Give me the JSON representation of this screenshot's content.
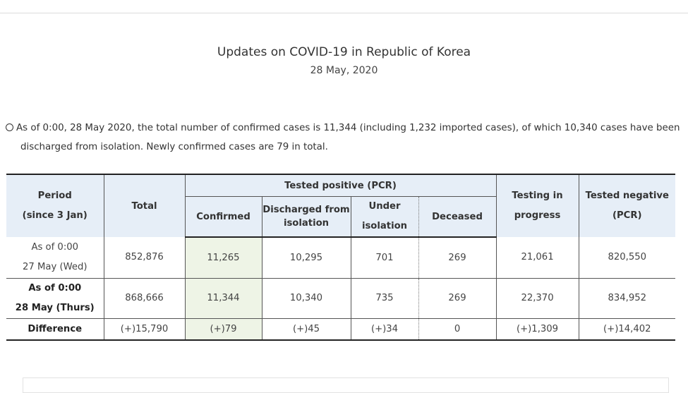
{
  "header": {
    "title": "Updates on COVID-19 in Republic of Korea",
    "date": "28 May, 2020"
  },
  "summary": {
    "line1": "As of 0:00, 28 May 2020, the total number of confirmed cases is 11,344 (including 1,232 imported cases), of which 10,340 cases have been",
    "line2": "discharged from isolation. Newly confirmed cases are 79 in total."
  },
  "table": {
    "headers": {
      "period_line1": "Period",
      "period_line2": "(since 3 Jan)",
      "total": "Total",
      "tested_positive": "Tested positive (PCR)",
      "confirmed": "Confirmed",
      "discharged_line1": "Discharged from",
      "discharged_line2": "isolation",
      "under_line1": "Under",
      "under_line2": "isolation",
      "deceased": "Deceased",
      "testing_line1": "Testing in",
      "testing_line2": "progress",
      "negative_line1": "Tested negative",
      "negative_line2": "(PCR)"
    },
    "rows": [
      {
        "period_line1": "As of 0:00",
        "period_line2": "27 May (Wed)",
        "total": "852,876",
        "confirmed": "11,265",
        "discharged": "10,295",
        "under_isolation": "701",
        "deceased": "269",
        "testing": "21,061",
        "negative": "820,550"
      },
      {
        "period_line1": "As of 0:00",
        "period_line2": "28 May (Thurs)",
        "total": "868,666",
        "confirmed": "11,344",
        "discharged": "10,340",
        "under_isolation": "735",
        "deceased": "269",
        "testing": "22,370",
        "negative": "834,952"
      }
    ],
    "difference": {
      "label": "Difference",
      "total": "(+)15,790",
      "confirmed": "(+)79",
      "discharged": "(+)45",
      "under_isolation": "(+)34",
      "deceased": "0",
      "testing": "(+)1,309",
      "negative": "(+)14,402"
    }
  }
}
